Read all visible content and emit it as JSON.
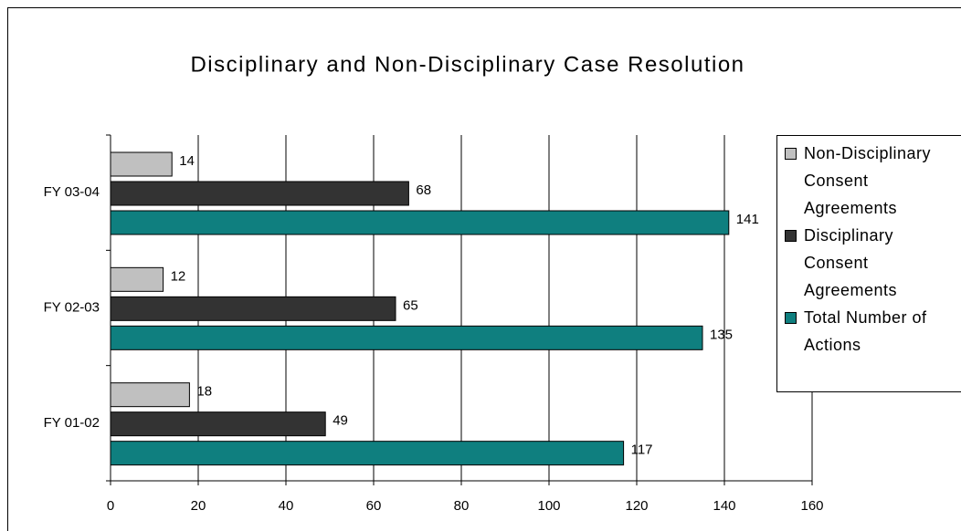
{
  "chart_data": {
    "type": "hbar",
    "title": "Disciplinary and Non-Disciplinary Case Resolution",
    "categories": [
      "FY 03-04",
      "FY 02-03",
      "FY 01-02"
    ],
    "series": [
      {
        "name": "Non-Disciplinary Consent Agreements",
        "color": "#c0c0c0",
        "values": [
          14,
          12,
          18
        ]
      },
      {
        "name": "Disciplinary Consent Agreements",
        "color": "#333333",
        "values": [
          68,
          65,
          49
        ]
      },
      {
        "name": "Total Number of Actions",
        "color": "#0f7f7f",
        "values": [
          141,
          135,
          117
        ]
      }
    ],
    "xlim": [
      0,
      160
    ],
    "xticks": [
      0,
      20,
      40,
      60,
      80,
      100,
      120,
      140,
      160
    ],
    "grid": true,
    "legend": "right"
  }
}
